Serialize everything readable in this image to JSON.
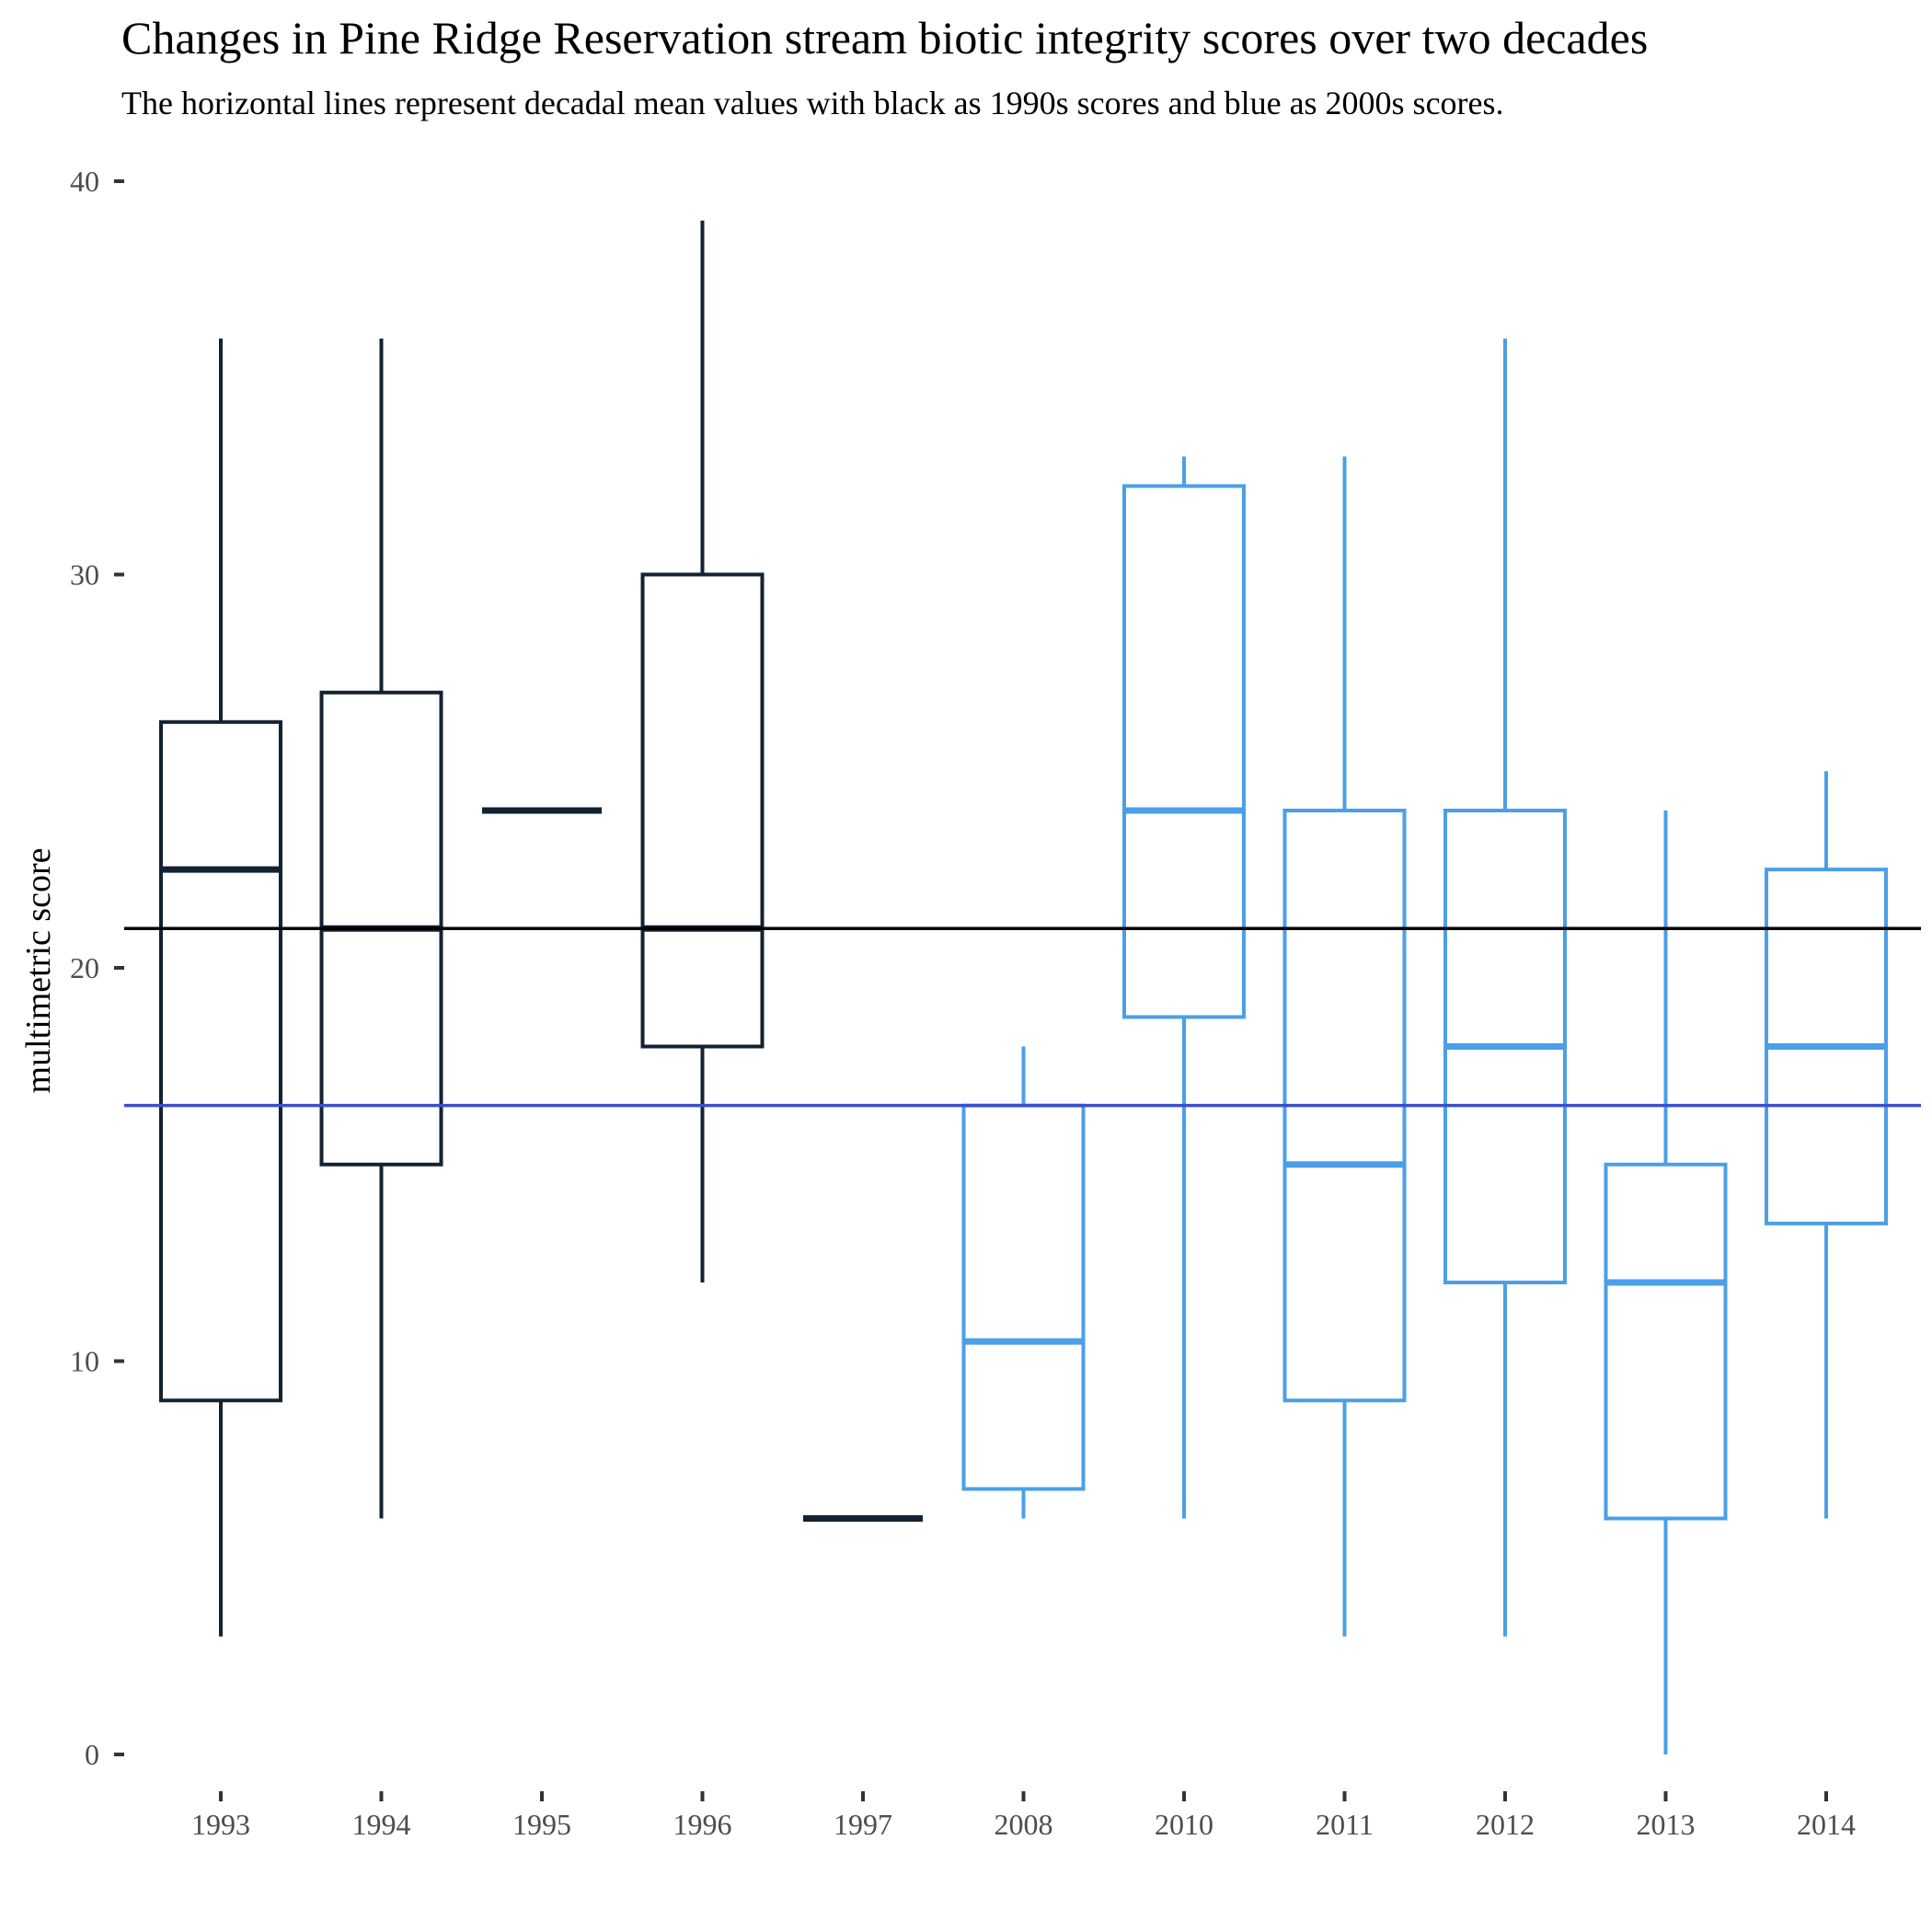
{
  "chart_data": {
    "type": "boxplot",
    "title": "Changes in Pine Ridge Reservation stream biotic integrity scores over two decades",
    "subtitle": "The horizontal lines represent decadal mean values with black as 1990s scores and blue as 2000s scores.",
    "xlabel": "",
    "ylabel": "multimetric score",
    "ylim": [
      -1.6,
      40.4
    ],
    "y_ticks": [
      0,
      10,
      20,
      30,
      40
    ],
    "grid": false,
    "categories": [
      "1993",
      "1994",
      "1995",
      "1996",
      "1997",
      "2008",
      "2010",
      "2011",
      "2012",
      "2013",
      "2014"
    ],
    "boxes": [
      {
        "category": "1993",
        "decade": "1990s",
        "min": 3,
        "q1": 9,
        "median": 22.5,
        "q3": 26.25,
        "max": 36
      },
      {
        "category": "1994",
        "decade": "1990s",
        "min": 6,
        "q1": 15,
        "median": 21,
        "q3": 27,
        "max": 36
      },
      {
        "category": "1995",
        "decade": "1990s",
        "min": 24,
        "q1": 24,
        "median": 24,
        "q3": 24,
        "max": 24
      },
      {
        "category": "1996",
        "decade": "1990s",
        "min": 12,
        "q1": 18,
        "median": 21,
        "q3": 30,
        "max": 39
      },
      {
        "category": "1997",
        "decade": "1990s",
        "min": 6,
        "q1": 6,
        "median": 6,
        "q3": 6,
        "max": 6
      },
      {
        "category": "2008",
        "decade": "2000s",
        "min": 6,
        "q1": 6.75,
        "median": 10.5,
        "q3": 16.5,
        "max": 18
      },
      {
        "category": "2010",
        "decade": "2000s",
        "min": 6,
        "q1": 18.75,
        "median": 24,
        "q3": 32.25,
        "max": 33
      },
      {
        "category": "2011",
        "decade": "2000s",
        "min": 3,
        "q1": 9,
        "median": 15,
        "q3": 24,
        "max": 33
      },
      {
        "category": "2012",
        "decade": "2000s",
        "min": 3,
        "q1": 12,
        "median": 18,
        "q3": 24,
        "max": 36
      },
      {
        "category": "2013",
        "decade": "2000s",
        "min": 0,
        "q1": 6,
        "median": 12,
        "q3": 15,
        "max": 24
      },
      {
        "category": "2014",
        "decade": "2000s",
        "min": 6,
        "q1": 13.5,
        "median": 18,
        "q3": 22.5,
        "max": 25
      }
    ],
    "reference_lines": [
      {
        "decade": "1990s",
        "y": 21,
        "color": "#000000"
      },
      {
        "decade": "2000s",
        "y": 16.5,
        "color": "#3a4fcf"
      }
    ],
    "colors": {
      "1990s": "#132233",
      "2000s": "#4b9fe8"
    }
  }
}
